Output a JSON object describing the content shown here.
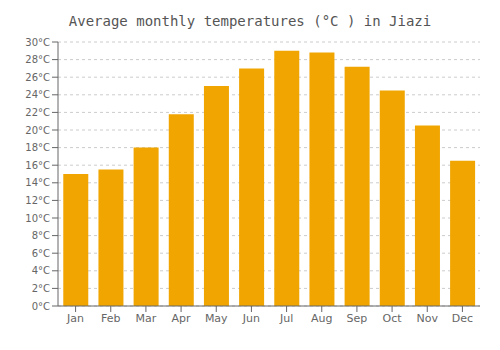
{
  "chart_data": {
    "type": "bar",
    "title": "Average monthly temperatures (°C ) in Jiazi",
    "categories": [
      "Jan",
      "Feb",
      "Mar",
      "Apr",
      "May",
      "Jun",
      "Jul",
      "Aug",
      "Sep",
      "Oct",
      "Nov",
      "Dec"
    ],
    "values": [
      15.0,
      15.5,
      18.0,
      21.8,
      25.0,
      27.0,
      29.0,
      28.8,
      27.2,
      24.5,
      20.5,
      16.5
    ],
    "color": "#F0A500",
    "ylim": [
      0,
      30
    ],
    "yticks": [
      {
        "value": 0,
        "label": "0°C"
      },
      {
        "value": 2,
        "label": "2°C"
      },
      {
        "value": 4,
        "label": "4°C"
      },
      {
        "value": 6,
        "label": "6°C"
      },
      {
        "value": 8,
        "label": "8°C"
      },
      {
        "value": 10,
        "label": "10°C"
      },
      {
        "value": 12,
        "label": "12°C"
      },
      {
        "value": 14,
        "label": "14°C"
      },
      {
        "value": 16,
        "label": "16°C"
      },
      {
        "value": 18,
        "label": "18°C"
      },
      {
        "value": 20,
        "label": "20°C"
      },
      {
        "value": 22,
        "label": "22°C"
      },
      {
        "value": 24,
        "label": "24°C"
      },
      {
        "value": 26,
        "label": "26°C"
      },
      {
        "value": 28,
        "label": "28°C"
      },
      {
        "value": 30,
        "label": "30°C"
      }
    ],
    "grid": true
  }
}
